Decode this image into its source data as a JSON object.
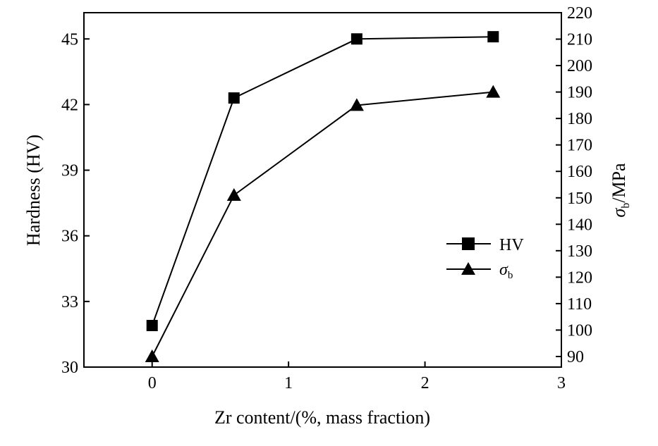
{
  "chart_data": {
    "type": "line",
    "x": [
      0,
      0.6,
      1.5,
      2.5
    ],
    "xlabel": "Zr content/(%, mass fraction)",
    "ylabel": "Hardness (HV)",
    "ylabel_right": {
      "main": "σ",
      "sub": "b",
      "rest": "/MPa"
    },
    "xlim": [
      -0.5,
      3
    ],
    "ylim": [
      30,
      46.2
    ],
    "ylim_right": [
      86,
      220
    ],
    "xticks": [
      0,
      1,
      2,
      3
    ],
    "yticks": [
      30,
      33,
      36,
      39,
      42,
      45
    ],
    "yticks_right": [
      90,
      100,
      110,
      120,
      130,
      140,
      150,
      160,
      170,
      180,
      190,
      200,
      210,
      220
    ],
    "series": [
      {
        "name": "HV",
        "axis": "left",
        "marker": "square",
        "values": [
          31.9,
          42.3,
          45.0,
          45.1
        ]
      },
      {
        "name": "σ_b",
        "axis": "right",
        "marker": "triangle",
        "values": [
          90,
          151,
          185,
          190
        ]
      }
    ],
    "legend": {
      "position": "center-right",
      "entries": [
        {
          "label": "HV",
          "marker": "square"
        },
        {
          "label_main": "σ",
          "label_sub": "b",
          "marker": "triangle"
        }
      ]
    }
  }
}
